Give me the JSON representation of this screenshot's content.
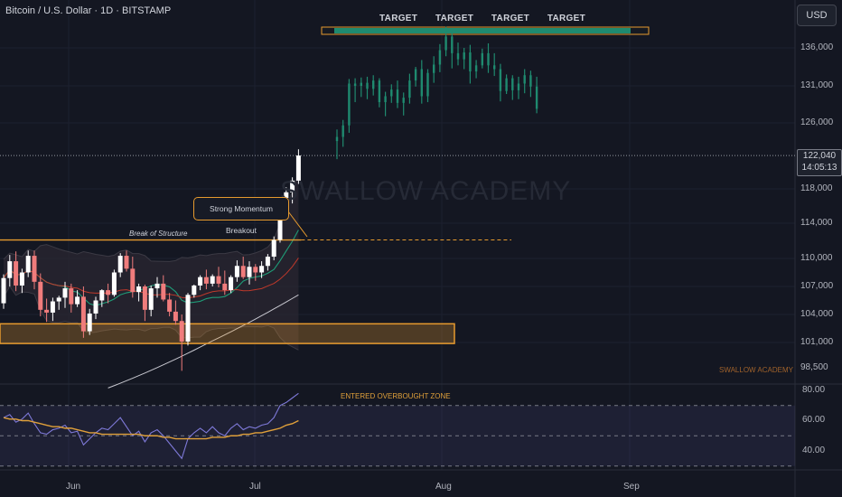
{
  "header": {
    "symbol_info": "Bitcoin / U.S. Dollar · 1D · BITSTAMP",
    "currency_button": "USD"
  },
  "targets": [
    "TARGET",
    "TARGET",
    "TARGET",
    "TARGET"
  ],
  "watermark": "SWALLOW ACADEMY",
  "watermark_small": "SWALLOW ACADEMY",
  "annotations": {
    "momentum": "Strong Momentum Breakout",
    "break_of_structure": "Break of Structure",
    "overbought": "ENTERED OVERBOUGHT ZONE"
  },
  "current_price": {
    "value": "122,040",
    "countdown": "14:05:13"
  },
  "price_axis": [
    "136,000",
    "131,000",
    "126,000",
    "118,000",
    "114,000",
    "110,000",
    "107,000",
    "104,000",
    "101,000",
    "98,500"
  ],
  "rsi_axis": [
    "80.00",
    "60.00",
    "40.00"
  ],
  "time_axis": [
    "Jun",
    "Jul",
    "Aug",
    "Sep"
  ],
  "colors": {
    "background": "#141722",
    "bull": "#ffffff",
    "bear": "#f07c7c",
    "projection": "#1f8a6f",
    "zone": "#e69a2e",
    "rsi": "#7e79d8",
    "rsi_ma": "#e0a03a"
  },
  "chart_data": {
    "type": "candlestick",
    "ylim": [
      96000,
      141000
    ],
    "candles": [
      [
        105200,
        108300,
        104600,
        107900
      ],
      [
        107900,
        110400,
        107000,
        109700
      ],
      [
        109700,
        110800,
        106500,
        107100
      ],
      [
        107100,
        108900,
        106300,
        108500
      ],
      [
        108500,
        110900,
        108000,
        110300
      ],
      [
        110300,
        110900,
        106700,
        107500
      ],
      [
        107500,
        108400,
        103800,
        104500
      ],
      [
        104500,
        105700,
        103200,
        104200
      ],
      [
        104200,
        105800,
        103300,
        105400
      ],
      [
        105400,
        106000,
        104500,
        105800
      ],
      [
        105800,
        107500,
        104700,
        106800
      ],
      [
        106800,
        107300,
        104200,
        105100
      ],
      [
        105100,
        106600,
        104800,
        105900
      ],
      [
        105900,
        107000,
        101500,
        102200
      ],
      [
        102200,
        104600,
        101800,
        104100
      ],
      [
        104100,
        105900,
        103500,
        105500
      ],
      [
        105500,
        106700,
        104800,
        106600
      ],
      [
        106600,
        107300,
        105200,
        106100
      ],
      [
        106100,
        108800,
        105900,
        108500
      ],
      [
        108500,
        110600,
        108000,
        110300
      ],
      [
        110300,
        110900,
        108600,
        108900
      ],
      [
        108900,
        110200,
        105800,
        106400
      ],
      [
        106400,
        107300,
        105400,
        107000
      ],
      [
        107000,
        107200,
        103300,
        104500
      ],
      [
        104500,
        107100,
        103800,
        106800
      ],
      [
        106800,
        108000,
        105800,
        107300
      ],
      [
        107300,
        108200,
        105400,
        105600
      ],
      [
        105600,
        106300,
        103800,
        104300
      ],
      [
        104300,
        105500,
        102900,
        103300
      ],
      [
        103300,
        104000,
        98200,
        101100
      ],
      [
        101100,
        106300,
        100700,
        106100
      ],
      [
        106100,
        107200,
        105800,
        107100
      ],
      [
        107100,
        108200,
        106600,
        108000
      ],
      [
        108000,
        108800,
        106700,
        107300
      ],
      [
        107300,
        108300,
        107000,
        108100
      ],
      [
        108100,
        109100,
        106900,
        107300
      ],
      [
        107300,
        108700,
        106100,
        106600
      ],
      [
        106600,
        108200,
        106300,
        108000
      ],
      [
        108000,
        109800,
        107500,
        109200
      ],
      [
        109200,
        110200,
        107800,
        108000
      ],
      [
        108000,
        109700,
        107200,
        109100
      ],
      [
        109100,
        109400,
        107600,
        108500
      ],
      [
        108500,
        109700,
        107900,
        109200
      ],
      [
        109200,
        110500,
        108700,
        110200
      ],
      [
        110200,
        112500,
        109800,
        112100
      ],
      [
        112100,
        116900,
        111800,
        116600
      ],
      [
        116600,
        118200,
        115500,
        117600
      ],
      [
        117600,
        119400,
        116300,
        119000
      ],
      [
        119000,
        122800,
        118600,
        122040
      ]
    ],
    "projection": [
      [
        123800,
        125200,
        121600,
        124300
      ],
      [
        124300,
        126400,
        123100,
        125700
      ],
      [
        125700,
        131900,
        124800,
        131300
      ],
      [
        131300,
        132000,
        128800,
        131000
      ],
      [
        131000,
        132100,
        129500,
        131400
      ],
      [
        131400,
        132200,
        129200,
        130600
      ],
      [
        130600,
        132400,
        129700,
        131700
      ],
      [
        131700,
        132000,
        128100,
        128800
      ],
      [
        128800,
        130200,
        126900,
        129600
      ],
      [
        129600,
        131200,
        128700,
        130500
      ],
      [
        130500,
        131700,
        128000,
        128700
      ],
      [
        128700,
        130100,
        127000,
        129400
      ],
      [
        129400,
        132600,
        128600,
        131700
      ],
      [
        131700,
        133500,
        130900,
        133200
      ],
      [
        133200,
        134400,
        128600,
        129600
      ],
      [
        129600,
        133200,
        128800,
        132700
      ],
      [
        132700,
        134900,
        131400,
        133800
      ],
      [
        133800,
        136500,
        132800,
        135700
      ],
      [
        135700,
        138800,
        134900,
        137500
      ],
      [
        137500,
        138300,
        133300,
        135300
      ],
      [
        135300,
        136700,
        133700,
        134500
      ],
      [
        134500,
        136000,
        133200,
        135400
      ],
      [
        135400,
        136400,
        131300,
        132900
      ],
      [
        132900,
        134400,
        132000,
        133700
      ],
      [
        133700,
        135900,
        133300,
        135300
      ],
      [
        135300,
        136600,
        132700,
        133700
      ],
      [
        133700,
        135300,
        132300,
        133200
      ],
      [
        133200,
        133900,
        128900,
        130300
      ],
      [
        130300,
        132500,
        129900,
        132000
      ],
      [
        132000,
        132400,
        129100,
        130400
      ],
      [
        130400,
        132200,
        129200,
        131300
      ],
      [
        131300,
        133200,
        130000,
        132400
      ],
      [
        132400,
        133000,
        129500,
        130900
      ],
      [
        130900,
        132200,
        127300,
        127900
      ]
    ],
    "rsi": [
      62,
      64,
      59,
      61,
      65,
      58,
      52,
      51,
      54,
      55,
      57,
      52,
      53,
      44,
      48,
      52,
      55,
      54,
      58,
      62,
      56,
      50,
      53,
      46,
      52,
      54,
      50,
      45,
      40,
      35,
      48,
      52,
      55,
      52,
      56,
      52,
      50,
      55,
      58,
      54,
      56,
      55,
      57,
      58,
      62,
      70,
      72,
      75,
      78
    ],
    "rsi_ma": [
      62,
      61,
      61,
      60,
      60,
      59,
      58,
      57,
      56,
      56,
      55,
      55,
      54,
      53,
      52,
      52,
      51,
      51,
      51,
      51,
      51,
      51,
      51,
      50,
      50,
      50,
      49,
      49,
      48,
      48,
      48,
      48,
      48,
      48,
      49,
      49,
      49,
      50,
      50,
      51,
      51,
      52,
      52,
      53,
      54,
      55,
      57,
      58,
      60
    ],
    "rsi_ylim": [
      28,
      82
    ],
    "targets_zone": [
      136800,
      137600
    ],
    "demand_zone": [
      100900,
      103000
    ],
    "break_of_structure_level": 112100
  }
}
